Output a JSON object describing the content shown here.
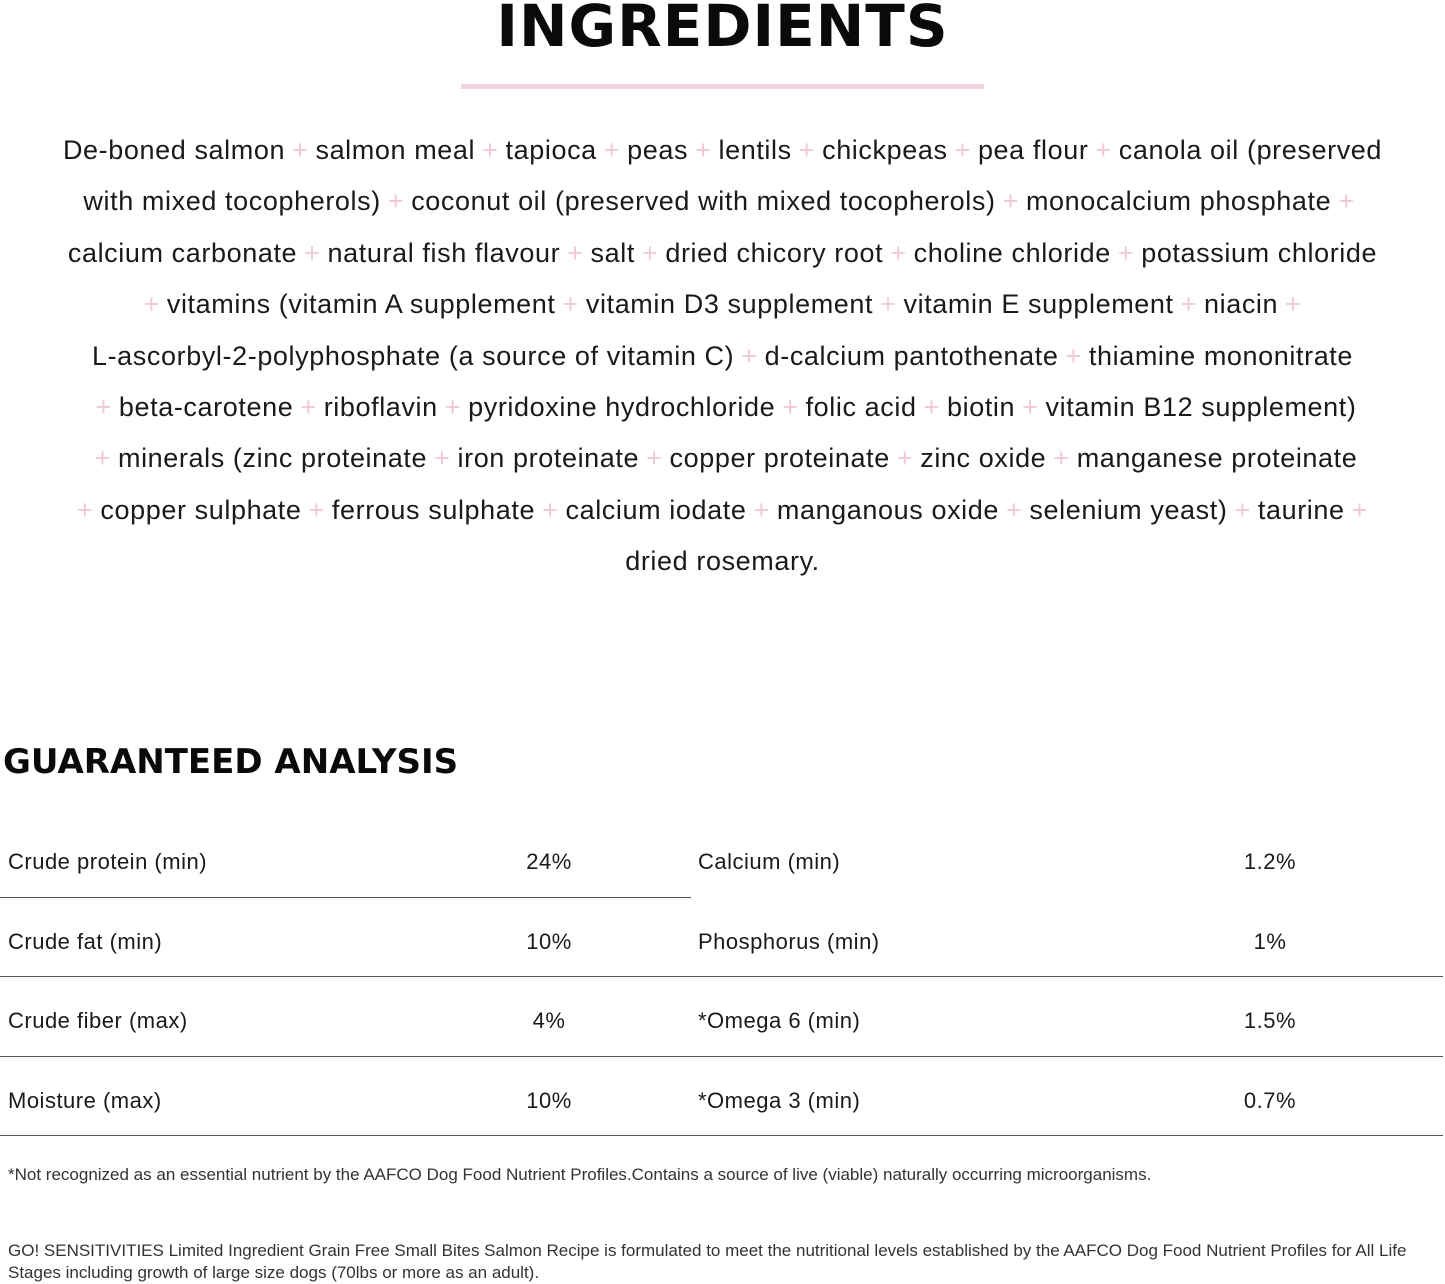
{
  "ingredients": {
    "title": "INGREDIENTS",
    "lines": [
      [
        "De-boned salmon",
        "+",
        "salmon meal",
        "+",
        "tapioca",
        "+",
        "peas",
        "+",
        "lentils",
        "+",
        "chickpeas",
        "+",
        "pea flour",
        "+",
        "canola oil (preserved"
      ],
      [
        "with mixed tocopherols)",
        "+",
        "coconut oil (preserved with mixed tocopherols)",
        "+",
        "monocalcium phosphate",
        "+"
      ],
      [
        "calcium carbonate",
        "+",
        "natural fish flavour",
        "+",
        "salt",
        "+",
        "dried chicory root",
        "+",
        "choline chloride",
        "+",
        "potassium chloride"
      ],
      [
        "+",
        "vitamins (vitamin A supplement",
        "+",
        "vitamin D3 supplement",
        "+",
        "vitamin E supplement",
        "+",
        "niacin",
        "+"
      ],
      [
        "L-ascorbyl-2-polyphosphate (a source of vitamin C)",
        "+",
        "d-calcium pantothenate",
        "+",
        "thiamine mononitrate"
      ],
      [
        "+",
        "beta-carotene",
        "+",
        "riboflavin",
        "+",
        "pyridoxine hydrochloride",
        "+",
        "folic acid",
        "+",
        "biotin",
        "+",
        "vitamin B12 supplement)"
      ],
      [
        "+",
        "minerals (zinc proteinate",
        "+",
        "iron proteinate",
        "+",
        "copper proteinate",
        "+",
        "zinc oxide",
        "+",
        "manganese proteinate"
      ],
      [
        "+",
        "copper sulphate",
        "+",
        "ferrous sulphate",
        "+",
        "calcium iodate",
        "+",
        "manganous oxide",
        "+",
        "selenium yeast)",
        "+",
        "taurine",
        "+"
      ],
      [
        "dried rosemary."
      ]
    ],
    "accent_color": "#f0c9d6"
  },
  "analysis": {
    "title": "GUARANTEED ANALYSIS",
    "rows": [
      {
        "label1": "Crude protein (min)",
        "value1": "24%",
        "label2": "Calcium (min)",
        "value2": "1.2%"
      },
      {
        "label1": "Crude fat (min)",
        "value1": "10%",
        "label2": "Phosphorus (min)",
        "value2": "1%"
      },
      {
        "label1": "Crude fiber (max)",
        "value1": "4%",
        "label2": "*Omega 6 (min)",
        "value2": "1.5%"
      },
      {
        "label1": "Moisture (max)",
        "value1": "10%",
        "label2": "*Omega 3 (min)",
        "value2": "0.7%"
      }
    ]
  },
  "footnote": "*Not recognized as an essential nutrient by the AAFCO Dog Food Nutrient Profiles.Contains a source of live (viable) naturally occurring microorganisms.",
  "statement": "GO! SENSITIVITIES Limited Ingredient Grain Free Small Bites Salmon Recipe is formulated to meet the nutritional levels established by the AAFCO Dog Food Nutrient Profiles for All Life Stages including growth of large size dogs (70lbs or more as an adult)."
}
